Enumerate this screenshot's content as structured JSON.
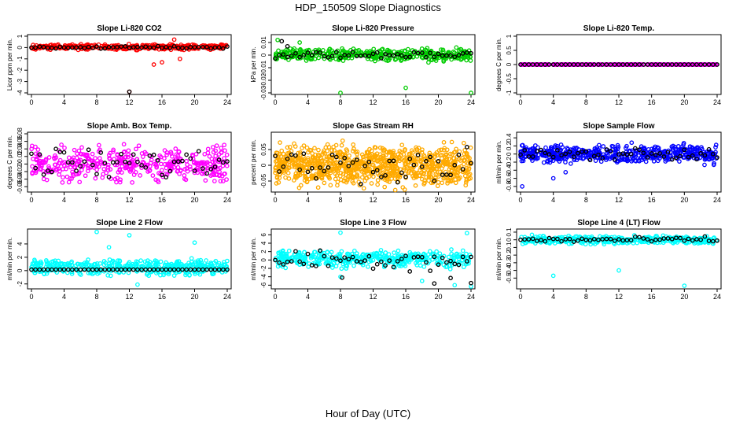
{
  "figure": {
    "title": "HDP_150509  Slope Diagnostics",
    "xlabel": "Hour of Day (UTC)"
  },
  "chart_data": [
    {
      "type": "scatter",
      "title": "Slope Li-820 CO2",
      "ylabel": "Licor ppm per min.",
      "xlim": [
        0,
        24
      ],
      "xticks": [
        0,
        4,
        8,
        12,
        16,
        20,
        24
      ],
      "ylim": [
        -4,
        1
      ],
      "yticks": [
        -4,
        -3,
        -2,
        -1,
        0,
        1
      ],
      "color": "#ff0000",
      "n": 380,
      "center": 0.05,
      "spread": 0.18,
      "extra": [
        [
          17.5,
          0.7
        ],
        [
          16,
          -1.3
        ],
        [
          15,
          -1.5
        ],
        [
          12,
          -3.9
        ],
        [
          18.2,
          -1.0
        ]
      ],
      "black_spread": 0.08,
      "bx": [
        [
          12,
          -3.9
        ]
      ]
    },
    {
      "type": "scatter",
      "title": "Slope Li-820 Pressure",
      "ylabel": "kPa per min.",
      "xlim": [
        0,
        24
      ],
      "xticks": [
        0,
        4,
        8,
        12,
        16,
        20,
        24
      ],
      "ylim": [
        -0.03,
        0.015
      ],
      "yticks": [
        -0.03,
        -0.02,
        -0.01,
        0,
        0.01
      ],
      "color": "#00cc00",
      "n": 380,
      "center": 0.0,
      "spread": 0.004,
      "extra": [
        [
          0.3,
          0.012
        ],
        [
          8,
          -0.03
        ],
        [
          16,
          -0.026
        ],
        [
          24,
          -0.03
        ],
        [
          3,
          0.01
        ]
      ],
      "black_spread": 0.002,
      "bx": [
        [
          0.8,
          0.011
        ],
        [
          1.5,
          0.007
        ]
      ]
    },
    {
      "type": "scatter",
      "title": "Slope Li-820 Temp.",
      "ylabel": "degrees C per min.",
      "xlim": [
        0,
        24
      ],
      "xticks": [
        0,
        4,
        8,
        12,
        16,
        20,
        24
      ],
      "ylim": [
        -1,
        1
      ],
      "yticks": [
        -1,
        -0.5,
        0,
        0.5,
        1
      ],
      "color": "#ff00ff",
      "n": 300,
      "center": 0.0,
      "spread": 0.0,
      "extra": [],
      "black_spread": 0.0,
      "bx": []
    },
    {
      "type": "scatter",
      "title": "Slope Amb. Box Temp.",
      "ylabel": "degrees C per min.",
      "xlim": [
        0,
        24
      ],
      "xticks": [
        0,
        4,
        8,
        12,
        16,
        20,
        24
      ],
      "ylim": [
        -0.07,
        0.08
      ],
      "yticks": [
        -0.06,
        -0.04,
        -0.02,
        0,
        0.02,
        0.04,
        0.06,
        0.08
      ],
      "color": "#ff00ff",
      "n": 420,
      "center": 0.0,
      "spread": 0.035,
      "extra": [],
      "black_spread": 0.035,
      "bx": []
    },
    {
      "type": "scatter",
      "title": "Slope Gas Stream RH",
      "ylabel": "percent per min.",
      "xlim": [
        0,
        24
      ],
      "xticks": [
        0,
        4,
        8,
        12,
        16,
        20,
        24
      ],
      "ylim": [
        -0.08,
        0.1
      ],
      "yticks": [
        -0.05,
        0,
        0.05
      ],
      "color": "#ffaa00",
      "n": 900,
      "center": 0.0,
      "spread": 0.05,
      "extra": [],
      "black_spread": 0.04,
      "bx": []
    },
    {
      "type": "scatter",
      "title": "Slope Sample Flow",
      "ylabel": "ml/min per min.",
      "xlim": [
        0,
        24
      ],
      "xticks": [
        0,
        4,
        8,
        12,
        16,
        20,
        24
      ],
      "ylim": [
        -0.9,
        0.5
      ],
      "yticks": [
        -0.8,
        -0.6,
        -0.4,
        -0.2,
        0,
        0.2,
        0.4
      ],
      "color": "#0000ff",
      "n": 520,
      "center": 0.0,
      "spread": 0.17,
      "extra": [
        [
          0.2,
          -0.8
        ],
        [
          4,
          -0.6
        ],
        [
          5.5,
          -0.45
        ]
      ],
      "black_spread": 0.12,
      "bx": []
    },
    {
      "type": "scatter",
      "title": "Slope Line 2 Flow",
      "ylabel": "ml/min per min.",
      "xlim": [
        0,
        24
      ],
      "xticks": [
        0,
        4,
        8,
        12,
        16,
        20,
        24
      ],
      "ylim": [
        -2.5,
        6
      ],
      "yticks": [
        -2,
        0,
        2,
        4
      ],
      "color": "#00ffff",
      "n": 420,
      "center": 0.5,
      "spread": 0.9,
      "extra": [
        [
          8,
          5.8
        ],
        [
          12,
          5.3
        ],
        [
          20,
          4.2
        ],
        [
          13,
          -2.1
        ],
        [
          9.5,
          3.5
        ]
      ],
      "black_spread": 0.0,
      "bx": []
    },
    {
      "type": "scatter",
      "title": "Slope Line 3 Flow",
      "ylabel": "ml/min per min.",
      "xlim": [
        0,
        24
      ],
      "xticks": [
        0,
        4,
        8,
        12,
        16,
        20,
        24
      ],
      "ylim": [
        -6.5,
        7
      ],
      "yticks": [
        -6,
        -4,
        -2,
        0,
        2,
        4,
        6
      ],
      "color": "#00ffff",
      "n": 420,
      "center": 0.3,
      "spread": 1.6,
      "extra": [
        [
          8,
          6.5
        ],
        [
          23.5,
          6.4
        ],
        [
          8,
          -4
        ],
        [
          18,
          -5
        ],
        [
          22,
          -6
        ],
        [
          24,
          -6.3
        ]
      ],
      "black_spread": 2.0,
      "bx": [
        [
          8.2,
          -4.2
        ],
        [
          19.5,
          -5.6
        ],
        [
          21.5,
          -4.3
        ],
        [
          24,
          -5.5
        ]
      ]
    },
    {
      "type": "scatter",
      "title": "Slope Line 4 (LT) Flow",
      "ylabel": "ml/min per min.",
      "xlim": [
        0,
        24
      ],
      "xticks": [
        0,
        4,
        8,
        12,
        16,
        20,
        24
      ],
      "ylim": [
        -0.62,
        0.12
      ],
      "yticks": [
        -0.5,
        -0.4,
        -0.3,
        -0.2,
        -0.1,
        0,
        0.1
      ],
      "color": "#00ffff",
      "n": 420,
      "center": 0.0,
      "spread": 0.04,
      "extra": [
        [
          4,
          -0.47
        ],
        [
          12,
          -0.4
        ],
        [
          20,
          -0.6
        ]
      ],
      "black_spread": 0.03,
      "bx": []
    }
  ]
}
